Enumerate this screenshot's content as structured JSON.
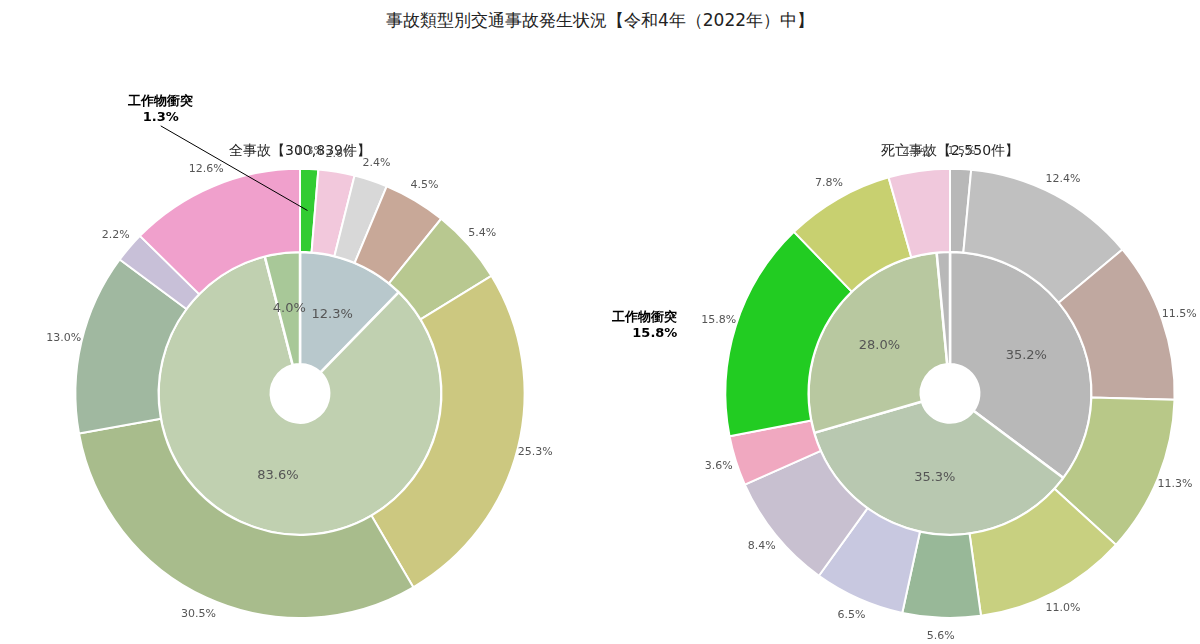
{
  "title": "事故類型別交通事故発生状況【令和4年（2022年）中】",
  "chart_data": [
    {
      "type": "doughnut",
      "title": "全事故【300,839件】",
      "data_labels": true,
      "series": [
        {
          "values": [
            1.3,
            2.6,
            2.4,
            4.5,
            5.4,
            25.3,
            30.5,
            13.0,
            2.2,
            12.6
          ],
          "colors": [
            "#33cc33",
            "#f2c8dc",
            "#d8d8d8",
            "#c8a898",
            "#b8c890",
            "#ccc880",
            "#a8bc8c",
            "#a0b8a0",
            "#c8c0d8",
            "#f0a0cc"
          ],
          "value_labels": [
            "1.3%",
            "2.6%",
            "2.4%",
            "4.5%",
            "5.4%",
            "25.3%",
            "30.5%",
            "13.0%",
            "2.2%",
            "12.6%"
          ]
        },
        {
          "values": [
            12.3,
            83.6,
            4.0
          ],
          "colors": [
            "#b8c8cc",
            "#c0d0b0",
            "#a8c898"
          ],
          "value_labels": [
            "12.3%",
            "83.6%",
            "4.0%"
          ]
        }
      ],
      "annotations": [
        "工作物衝突\n1.3%"
      ]
    },
    {
      "type": "doughnut",
      "title": "死亡事故【2,550件】",
      "data_labels": true,
      "series": [
        {
          "values": [
            1.5,
            12.4,
            11.5,
            11.3,
            11.0,
            5.6,
            6.5,
            8.4,
            3.6,
            15.8,
            7.8,
            4.4
          ],
          "colors": [
            "#b8b8b8",
            "#c0c0c0",
            "#c0a8a0",
            "#b8c888",
            "#c8d080",
            "#98b898",
            "#c8c8e0",
            "#c8c0d0",
            "#f0a8c0",
            "#22cc22",
            "#c8d070",
            "#f0c8dc"
          ],
          "value_labels": [
            "1.5%",
            "12.4%",
            "11.5%",
            "11.3%",
            "11.0%",
            "5.6%",
            "6.5%",
            "8.4%",
            "3.6%",
            "15.8%",
            "7.8%",
            "4.4%"
          ]
        },
        {
          "values": [
            35.2,
            35.3,
            28.0,
            1.5
          ],
          "colors": [
            "#b8b8b8",
            "#b8c8b0",
            "#b8c8a0",
            "#b8b8b8"
          ],
          "value_labels": [
            "35.2%",
            "35.3%",
            "28.0%",
            null
          ]
        }
      ],
      "annotations": [
        "工作物衝突\n15.8%"
      ]
    }
  ]
}
